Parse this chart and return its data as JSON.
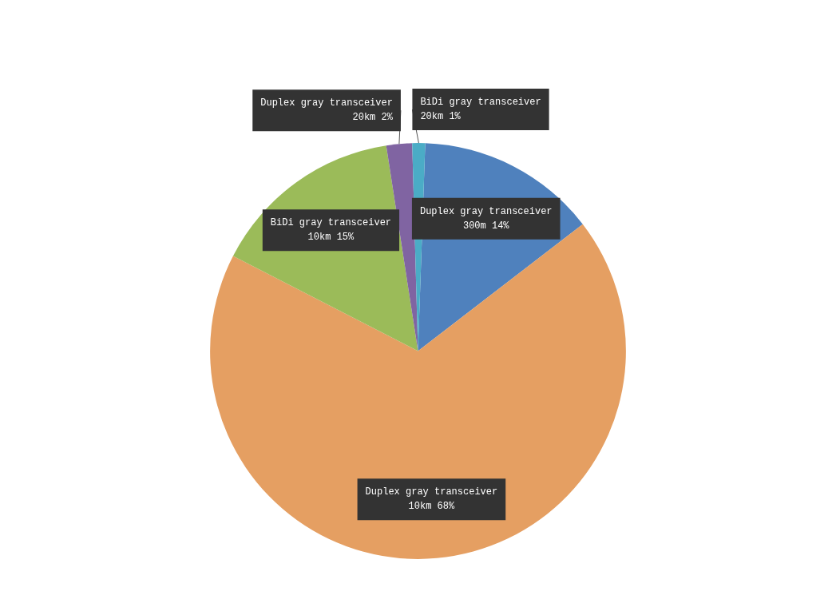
{
  "chart_data": {
    "type": "pie",
    "categories": [
      "Duplex gray transceiver\n300m",
      "Duplex gray transceiver\n10km",
      "BiDi gray transceiver\n10km",
      "Duplex gray transceiver\n20km",
      "BiDi gray transceiver\n20km"
    ],
    "values": [
      14,
      68,
      15,
      2,
      1
    ],
    "value_labels": [
      "14%",
      "68%",
      "15%",
      "2%",
      "1%"
    ],
    "colors": [
      "#4f81bd",
      "#e59f62",
      "#9bbb59",
      "#8064a2",
      "#4bacc6"
    ],
    "legend": false
  }
}
